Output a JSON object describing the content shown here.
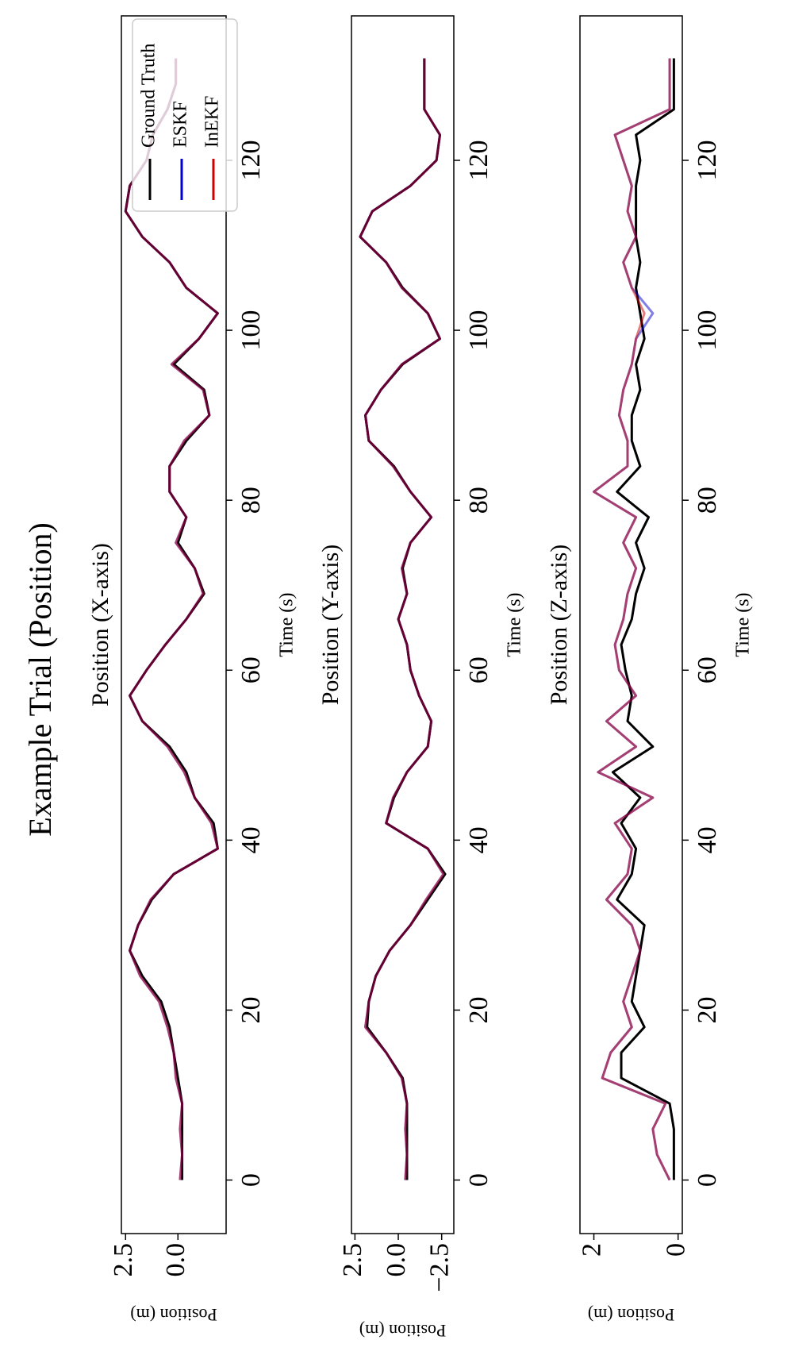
{
  "title": "Example Trial (Position)",
  "chart_data": [
    {
      "type": "line",
      "title": "Position (X-axis)",
      "xlabel": "Time (s)",
      "ylabel": "Position (m)",
      "x": [
        0,
        3,
        6,
        9,
        12,
        15,
        18,
        21,
        24,
        27,
        30,
        33,
        36,
        39,
        42,
        45,
        48,
        51,
        54,
        57,
        60,
        63,
        66,
        69,
        72,
        75,
        78,
        81,
        84,
        87,
        90,
        93,
        96,
        99,
        102,
        105,
        108,
        111,
        114,
        117,
        120,
        123,
        126,
        129,
        132
      ],
      "series": [
        {
          "name": "Ground Truth",
          "color": "#000000",
          "alpha": 1,
          "values": [
            -0.2,
            -0.2,
            -0.2,
            -0.2,
            0,
            0.2,
            0.4,
            0.8,
            1.7,
            2.3,
            1.9,
            1.25,
            0.2,
            -1.9,
            -1.7,
            -0.8,
            -0.4,
            0.4,
            1.7,
            2.3,
            1.5,
            0.6,
            -0.4,
            -1.25,
            -0.8,
            0,
            -0.4,
            0.4,
            0.4,
            -0.4,
            -1.5,
            -1.25,
            0.2,
            -1.0,
            -1.9,
            -0.4,
            0.4,
            1.7,
            2.5,
            2.3,
            1.5,
            1.2,
            0.5,
            0.1,
            0.1
          ]
        },
        {
          "name": "ESKF",
          "color": "#0000cc",
          "alpha": 0.5,
          "values": [
            -0.1,
            -0.2,
            -0.1,
            -0.2,
            0.1,
            0.2,
            0.5,
            0.9,
            1.8,
            2.3,
            1.9,
            1.3,
            0.2,
            -1.9,
            -1.6,
            -0.8,
            -0.3,
            0.5,
            1.7,
            2.3,
            1.5,
            0.6,
            -0.4,
            -1.2,
            -0.8,
            0.1,
            -0.4,
            0.4,
            0.4,
            -0.3,
            -1.5,
            -1.2,
            0.3,
            -1.0,
            -1.9,
            -0.4,
            0.4,
            1.7,
            2.5,
            2.3,
            1.5,
            1.2,
            0.5,
            0.1,
            0.1
          ]
        },
        {
          "name": "InEKF",
          "color": "#cc0000",
          "alpha": 0.5,
          "values": [
            -0.1,
            -0.2,
            -0.1,
            -0.2,
            0.1,
            0.2,
            0.5,
            0.9,
            1.8,
            2.3,
            1.9,
            1.3,
            0.2,
            -1.9,
            -1.6,
            -0.8,
            -0.3,
            0.5,
            1.7,
            2.3,
            1.5,
            0.6,
            -0.4,
            -1.2,
            -0.8,
            0.1,
            -0.4,
            0.4,
            0.4,
            -0.3,
            -1.5,
            -1.2,
            0.3,
            -1.0,
            -1.9,
            -0.4,
            0.4,
            1.7,
            2.5,
            2.3,
            1.5,
            1.2,
            0.5,
            0.1,
            0.1
          ]
        }
      ],
      "xlim": [
        -6.3,
        137
      ],
      "ylim": [
        -2.3,
        2.7
      ],
      "xticks": [
        0,
        20,
        40,
        60,
        80,
        100,
        120
      ],
      "yticks": [
        {
          "value": 0,
          "label": "0.0"
        },
        2.5
      ],
      "legend": "upper right"
    },
    {
      "type": "line",
      "title": "Position (Y-axis)",
      "xlabel": "Time (s)",
      "ylabel": "Position (m)",
      "x": [
        0,
        3,
        6,
        9,
        12,
        15,
        18,
        21,
        24,
        27,
        30,
        33,
        36,
        39,
        42,
        45,
        48,
        51,
        54,
        57,
        60,
        63,
        66,
        69,
        72,
        75,
        78,
        81,
        84,
        87,
        90,
        93,
        96,
        99,
        102,
        105,
        108,
        111,
        114,
        117,
        120,
        123,
        126,
        129,
        132
      ],
      "series": [
        {
          "color": "#000000",
          "alpha": 1,
          "values": [
            -0.5,
            -0.5,
            -0.5,
            -0.5,
            -0.25,
            0.7,
            1.8,
            1.7,
            1.3,
            0.5,
            -0.7,
            -1.7,
            -2.7,
            -1.7,
            0.7,
            0.25,
            -0.5,
            -1.7,
            -1.9,
            -1.2,
            -0.7,
            -0.5,
            0,
            -0.5,
            -0.25,
            -0.7,
            -1.9,
            -0.7,
            0.25,
            1.7,
            1.9,
            1.0,
            -0.25,
            -2.4,
            -1.7,
            -0.25,
            0.7,
            2.2,
            1.5,
            -0.7,
            -2.2,
            -2.4,
            -1.5,
            -1.5,
            -1.5
          ]
        },
        {
          "color": "#0000cc",
          "alpha": 0.5,
          "values": [
            -0.4,
            -0.5,
            -0.4,
            -0.5,
            -0.2,
            0.7,
            1.9,
            1.7,
            1.3,
            0.5,
            -0.7,
            -1.6,
            -2.6,
            -1.7,
            0.7,
            0.3,
            -0.5,
            -1.7,
            -1.9,
            -1.2,
            -0.7,
            -0.5,
            0,
            -0.5,
            -0.2,
            -0.7,
            -1.9,
            -0.7,
            0.3,
            1.7,
            1.9,
            1.0,
            -0.2,
            -2.4,
            -1.7,
            -0.2,
            0.7,
            2.2,
            1.5,
            -0.7,
            -2.2,
            -2.4,
            -1.5,
            -1.5,
            -1.5
          ]
        },
        {
          "color": "#cc0000",
          "alpha": 0.5,
          "values": [
            -0.4,
            -0.5,
            -0.4,
            -0.5,
            -0.2,
            0.7,
            1.9,
            1.7,
            1.3,
            0.5,
            -0.7,
            -1.6,
            -2.6,
            -1.7,
            0.7,
            0.3,
            -0.5,
            -1.7,
            -1.9,
            -1.2,
            -0.7,
            -0.5,
            0,
            -0.5,
            -0.2,
            -0.7,
            -1.9,
            -0.7,
            0.3,
            1.7,
            1.9,
            1.0,
            -0.2,
            -2.4,
            -1.7,
            -0.2,
            0.7,
            2.2,
            1.5,
            -0.7,
            -2.2,
            -2.4,
            -1.5,
            -1.5,
            -1.5
          ]
        }
      ],
      "xlim": [
        -6.3,
        137
      ],
      "ylim": [
        -3.2,
        2.7
      ],
      "xticks": [
        0,
        20,
        40,
        60,
        80,
        100,
        120
      ],
      "yticks": [
        {
          "value": -2.5,
          "label": "−2.5"
        },
        {
          "value": 0,
          "label": "0.0"
        },
        2.5
      ]
    },
    {
      "type": "line",
      "title": "Position (Z-axis)",
      "xlabel": "Time (s)",
      "ylabel": "Position (m)",
      "x": [
        0,
        3,
        6,
        9,
        12,
        15,
        18,
        21,
        24,
        27,
        30,
        33,
        36,
        39,
        42,
        45,
        48,
        51,
        54,
        57,
        60,
        63,
        66,
        69,
        72,
        75,
        78,
        81,
        84,
        87,
        90,
        93,
        96,
        99,
        102,
        105,
        108,
        111,
        114,
        117,
        120,
        123,
        126,
        129,
        132
      ],
      "series": [
        {
          "color": "#000000",
          "alpha": 1,
          "values": [
            0.1,
            0.1,
            0.1,
            0.2,
            1.35,
            1.35,
            0.8,
            1.1,
            1.0,
            0.9,
            0.8,
            1.45,
            1.1,
            1.0,
            1.35,
            0.9,
            1.55,
            0.6,
            1.2,
            1.1,
            1.25,
            1.35,
            1.1,
            1.0,
            0.8,
            1.0,
            0.7,
            1.45,
            0.9,
            1.1,
            1.1,
            0.9,
            1.0,
            0.8,
            0.9,
            1.0,
            0.9,
            1.0,
            1.0,
            1.0,
            0.9,
            1.0,
            0.1,
            0.1,
            0.1
          ]
        },
        {
          "color": "#0000cc",
          "alpha": 0.5,
          "values": [
            0.2,
            0.5,
            0.6,
            0.3,
            1.8,
            1.6,
            1.1,
            1.3,
            1.1,
            0.9,
            1.1,
            1.7,
            1.2,
            1.1,
            1.5,
            0.6,
            1.9,
            1.0,
            1.7,
            1.0,
            1.4,
            1.5,
            1.3,
            1.2,
            1.0,
            1.3,
            1.0,
            2.0,
            1.2,
            1.2,
            1.4,
            1.3,
            1.1,
            1.0,
            0.6,
            1.1,
            1.3,
            1.0,
            1.2,
            1.1,
            1.3,
            1.5,
            0.2,
            0.2,
            0.2
          ]
        },
        {
          "color": "#cc0000",
          "alpha": 0.5,
          "values": [
            0.2,
            0.5,
            0.6,
            0.3,
            1.8,
            1.6,
            1.1,
            1.3,
            1.1,
            0.9,
            1.1,
            1.7,
            1.2,
            1.1,
            1.5,
            0.6,
            1.9,
            1.0,
            1.7,
            1.0,
            1.4,
            1.5,
            1.3,
            1.2,
            1.0,
            1.3,
            1.0,
            2.0,
            1.2,
            1.2,
            1.4,
            1.3,
            1.1,
            1.0,
            0.8,
            1.1,
            1.3,
            1.0,
            1.2,
            1.1,
            1.3,
            1.5,
            0.2,
            0.2,
            0.2
          ]
        }
      ],
      "xlim": [
        -6.3,
        137
      ],
      "ylim": [
        -0.1,
        2.33
      ],
      "xticks": [
        0,
        20,
        40,
        60,
        80,
        100,
        120
      ],
      "yticks": [
        0,
        2
      ]
    }
  ]
}
